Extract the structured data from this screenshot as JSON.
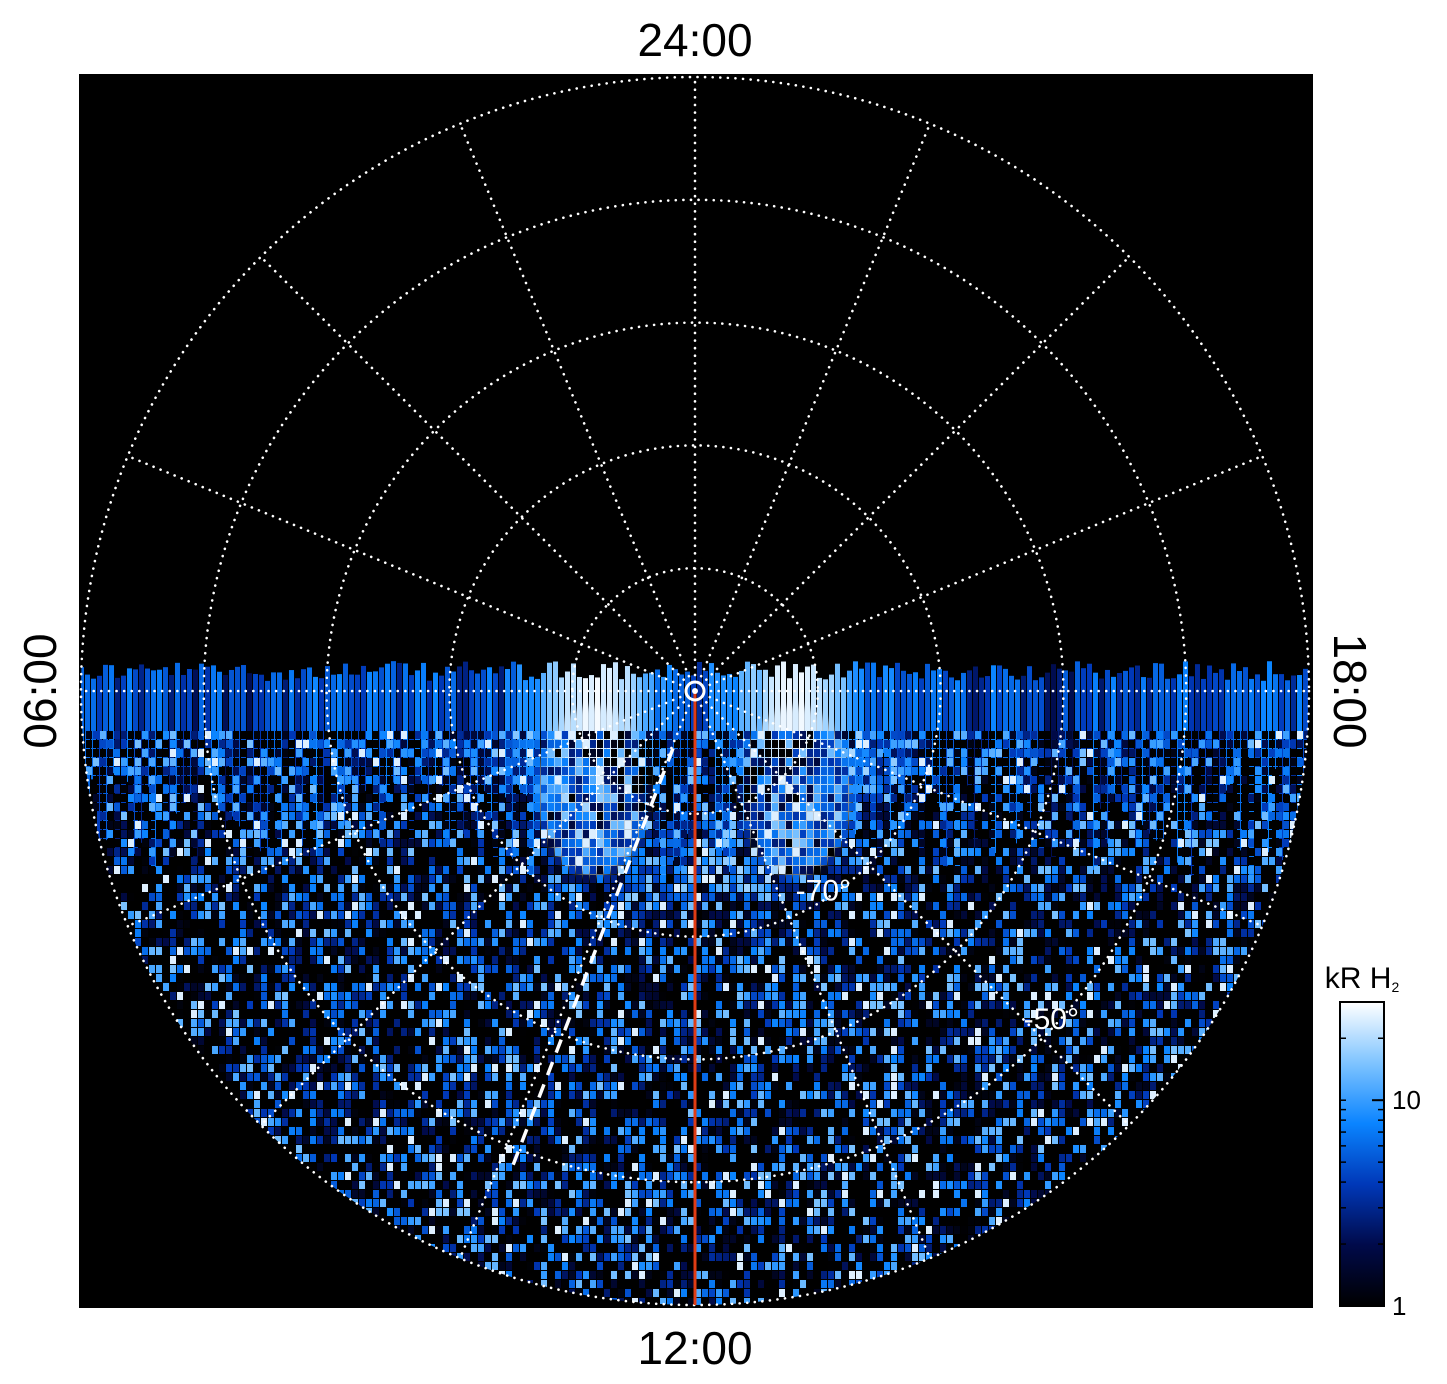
{
  "chart_data": {
    "type": "heatmap",
    "projection": "polar (south pole, local time around, latitude radially)",
    "title": "",
    "local_time_labels": {
      "top": "24:00",
      "bottom": "12:00",
      "left": "06:00",
      "right": "18:00"
    },
    "latitude_labels": [
      {
        "text": "-70°",
        "lat": -70,
        "local_time": 14.1
      },
      {
        "text": "-50°",
        "lat": -50,
        "local_time": 15.1
      }
    ],
    "grid": {
      "visible": true,
      "style": "dotted",
      "color": "#ffffff",
      "latitude_circles": [
        -80,
        -70,
        -60,
        -50,
        -40
      ],
      "pole_latitude": -90,
      "outer_latitude": -40,
      "local_time_spokes_every_hours": 1.5
    },
    "coverage": {
      "local_time_start": 6,
      "local_time_end": 18,
      "note": "dayside only"
    },
    "features": [
      {
        "name": "dawn auroral arc",
        "local_time": 8.3,
        "lat": -80,
        "intensity_kR": 25
      },
      {
        "name": "dusk auroral arc",
        "local_time": 15.7,
        "lat": -80,
        "intensity_kR": 25
      },
      {
        "name": "auroral oval band",
        "lat": -76,
        "intensity_kR": 8
      }
    ],
    "overlays": [
      {
        "type": "line",
        "color": "#e03c14",
        "local_time": 12.0,
        "from_lat": -90,
        "to_lat": -40,
        "style": "solid"
      },
      {
        "type": "line",
        "color": "#ffffff",
        "local_time": 10.6,
        "from_lat": -85,
        "to_lat": -48,
        "style": "dashed"
      },
      {
        "type": "marker",
        "color": "#ffffff",
        "lat": -90,
        "shape": "ring"
      }
    ],
    "colorbar": {
      "title": "kR H",
      "title_subscript": "2",
      "scale": "log",
      "range": [
        1,
        30
      ],
      "ticks": [
        {
          "value": 1,
          "label": "1"
        },
        {
          "value": 10,
          "label": "10"
        }
      ],
      "colors": [
        "#000000",
        "#000a4a",
        "#0038b8",
        "#0a84ff",
        "#7fc4ff",
        "#ffffff"
      ]
    }
  }
}
